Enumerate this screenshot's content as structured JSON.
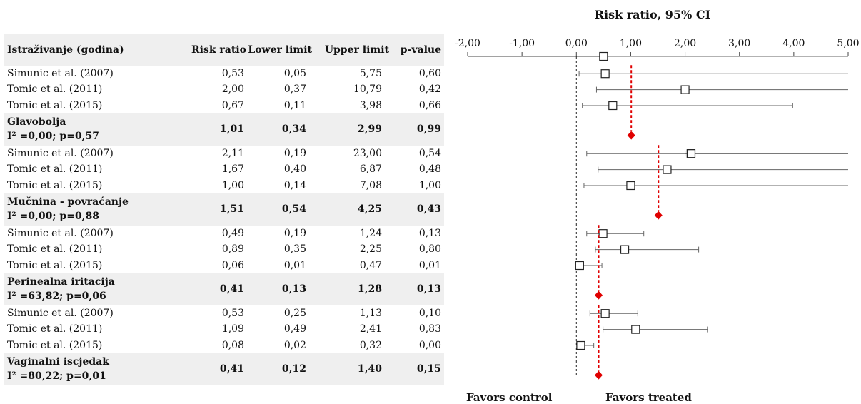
{
  "chart_data": {
    "type": "forest",
    "title": "Risk ratio, 95% CI",
    "xlim": [
      -2,
      5
    ],
    "ticks": [
      "-2,00",
      "-1,00",
      "0,00",
      "1,00",
      "2,00",
      "3,00",
      "4,00",
      "5,00"
    ],
    "columns": [
      "Istraživanje (godina)",
      "Risk ratio",
      "Lower limit",
      "Upper limit",
      "p-value"
    ],
    "groups": [
      {
        "studies": [
          {
            "study": "Simunic et al. (2007)",
            "rr": "0,53",
            "lower": "0,05",
            "upper": "5,75",
            "p": "0,60"
          },
          {
            "study": "Tomic et al. (2011)",
            "rr": "2,00",
            "lower": "0,37",
            "upper": "10,79",
            "p": "0,42"
          },
          {
            "study": "Tomic et al. (2015)",
            "rr": "0,67",
            "lower": "0,11",
            "upper": "3,98",
            "p": "0,66"
          }
        ],
        "summary": {
          "name": "Glavobolja",
          "stats": "I² =0,00; p=0,57",
          "rr": "1,01",
          "lower": "0,34",
          "upper": "2,99",
          "p": "0,99"
        }
      },
      {
        "studies": [
          {
            "study": "Simunic et al. (2007)",
            "rr": "2,11",
            "lower": "0,19",
            "upper": "23,00",
            "p": "0,54"
          },
          {
            "study": "Tomic et al. (2011)",
            "rr": "1,67",
            "lower": "0,40",
            "upper": "6,87",
            "p": "0,48"
          },
          {
            "study": "Tomic et al. (2015)",
            "rr": "1,00",
            "lower": "0,14",
            "upper": "7,08",
            "p": "1,00"
          }
        ],
        "summary": {
          "name": "Mučnina - povraćanje",
          "stats": "I² =0,00; p=0,88",
          "rr": "1,51",
          "lower": "0,54",
          "upper": "4,25",
          "p": "0,43"
        }
      },
      {
        "studies": [
          {
            "study": "Simunic et al. (2007)",
            "rr": "0,49",
            "lower": "0,19",
            "upper": "1,24",
            "p": "0,13"
          },
          {
            "study": "Tomic et al. (2011)",
            "rr": "0,89",
            "lower": "0,35",
            "upper": "2,25",
            "p": "0,80"
          },
          {
            "study": "Tomic et al. (2015)",
            "rr": "0,06",
            "lower": "0,01",
            "upper": "0,47",
            "p": "0,01"
          }
        ],
        "summary": {
          "name": "Perinealna iritacija",
          "stats": "I² =63,82; p=0,06",
          "rr": "0,41",
          "lower": "0,13",
          "upper": "1,28",
          "p": "0,13"
        }
      },
      {
        "studies": [
          {
            "study": "Simunic et al. (2007)",
            "rr": "0,53",
            "lower": "0,25",
            "upper": "1,13",
            "p": "0,10"
          },
          {
            "study": "Tomic et al. (2011)",
            "rr": "1,09",
            "lower": "0,49",
            "upper": "2,41",
            "p": "0,83"
          },
          {
            "study": "Tomic et al. (2015)",
            "rr": "0,08",
            "lower": "0,02",
            "upper": "0,32",
            "p": "0,00"
          }
        ],
        "summary": {
          "name": "Vaginalni iscjedak",
          "stats": "I² =80,22; p=0,01",
          "rr": "0,41",
          "lower": "0,12",
          "upper": "1,40",
          "p": "0,15"
        }
      }
    ],
    "extra_markers": [
      {
        "rr": 0.5,
        "lower": 0.5,
        "upper": 5
      },
      {
        "rr": 2.11,
        "lower": 2.0,
        "upper": 5
      }
    ],
    "favors_left": "Favors control",
    "favors_right": "Favors treated",
    "colors": {
      "summary": "#e00000",
      "marker": "#222222",
      "shade": "#efefef"
    }
  }
}
